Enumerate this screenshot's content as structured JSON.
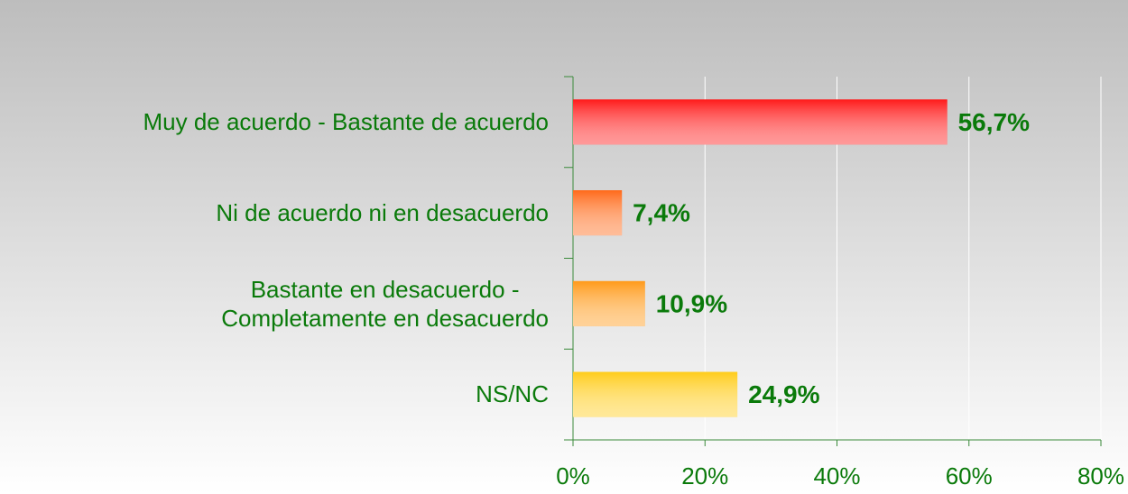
{
  "chart_data": {
    "type": "bar",
    "orientation": "horizontal",
    "categories": [
      "Muy de acuerdo - Bastante de acuerdo",
      "Ni de acuerdo ni en desacuerdo",
      "Bastante en desacuerdo -\nCompletamente en desacuerdo",
      "NS/NC"
    ],
    "values": [
      56.7,
      7.4,
      10.9,
      24.9
    ],
    "value_labels": [
      "56,7%",
      "7,4%",
      "10,9%",
      "24,9%"
    ],
    "colors": [
      "#ff1a1a",
      "#ff6a1a",
      "#ff9a1a",
      "#ffcc1a"
    ],
    "xlim": [
      0,
      80
    ],
    "xticks": [
      {
        "value": 0,
        "label": "0%"
      },
      {
        "value": 20,
        "label": "20%"
      },
      {
        "value": 40,
        "label": "40%"
      },
      {
        "value": 60,
        "label": "60%"
      },
      {
        "value": 80,
        "label": "80%"
      }
    ],
    "grid": true
  }
}
